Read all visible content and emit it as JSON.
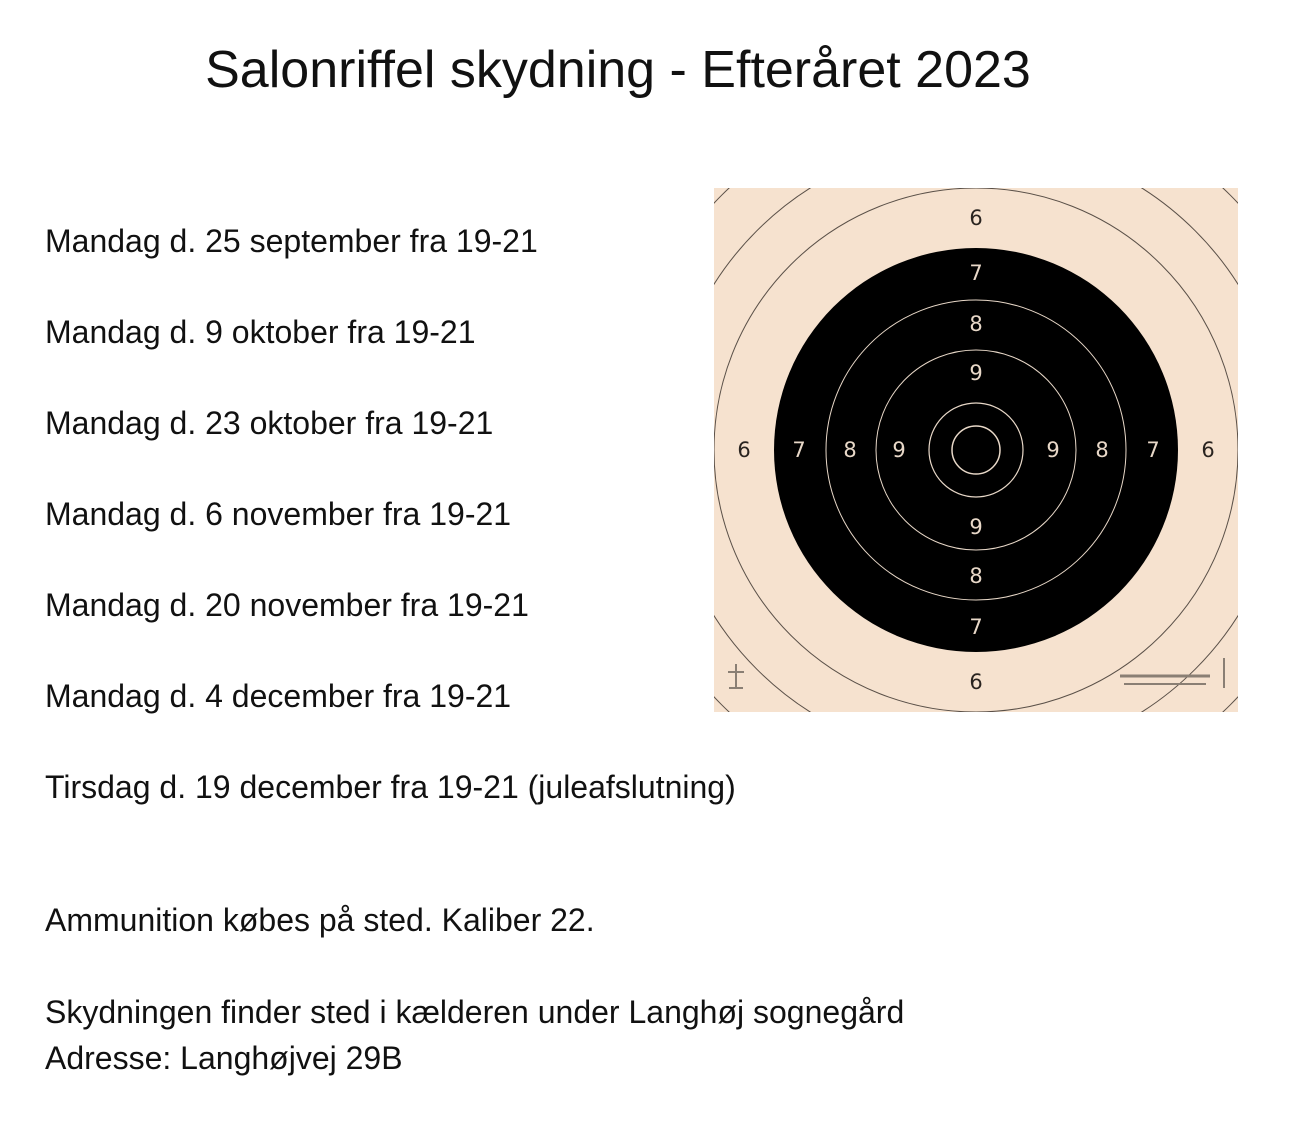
{
  "title": "Salonriffel skydning - Efteråret 2023",
  "schedule": [
    "Mandag d. 25 september fra 19-21",
    "Mandag d. 9 oktober fra 19-21",
    "Mandag d. 23 oktober fra 19-21",
    "Mandag d. 6 november fra 19-21",
    "Mandag d. 20 november fra 19-21",
    "Mandag d. 4 december fra 19-21",
    "Tirsdag d. 19 december fra 19-21 (juleafslutning)"
  ],
  "ammunition_note": "Ammunition købes på sted. Kaliber 22.",
  "location_note": "Skydningen finder sted i kælderen under Langhøj sognegård",
  "address": "Adresse: Langhøjvej 29B",
  "target": {
    "ring_labels": [
      "6",
      "7",
      "8",
      "9"
    ],
    "paper_color": "#f6e2cf",
    "black_color": "#000000",
    "line_color": "#5a5048"
  }
}
